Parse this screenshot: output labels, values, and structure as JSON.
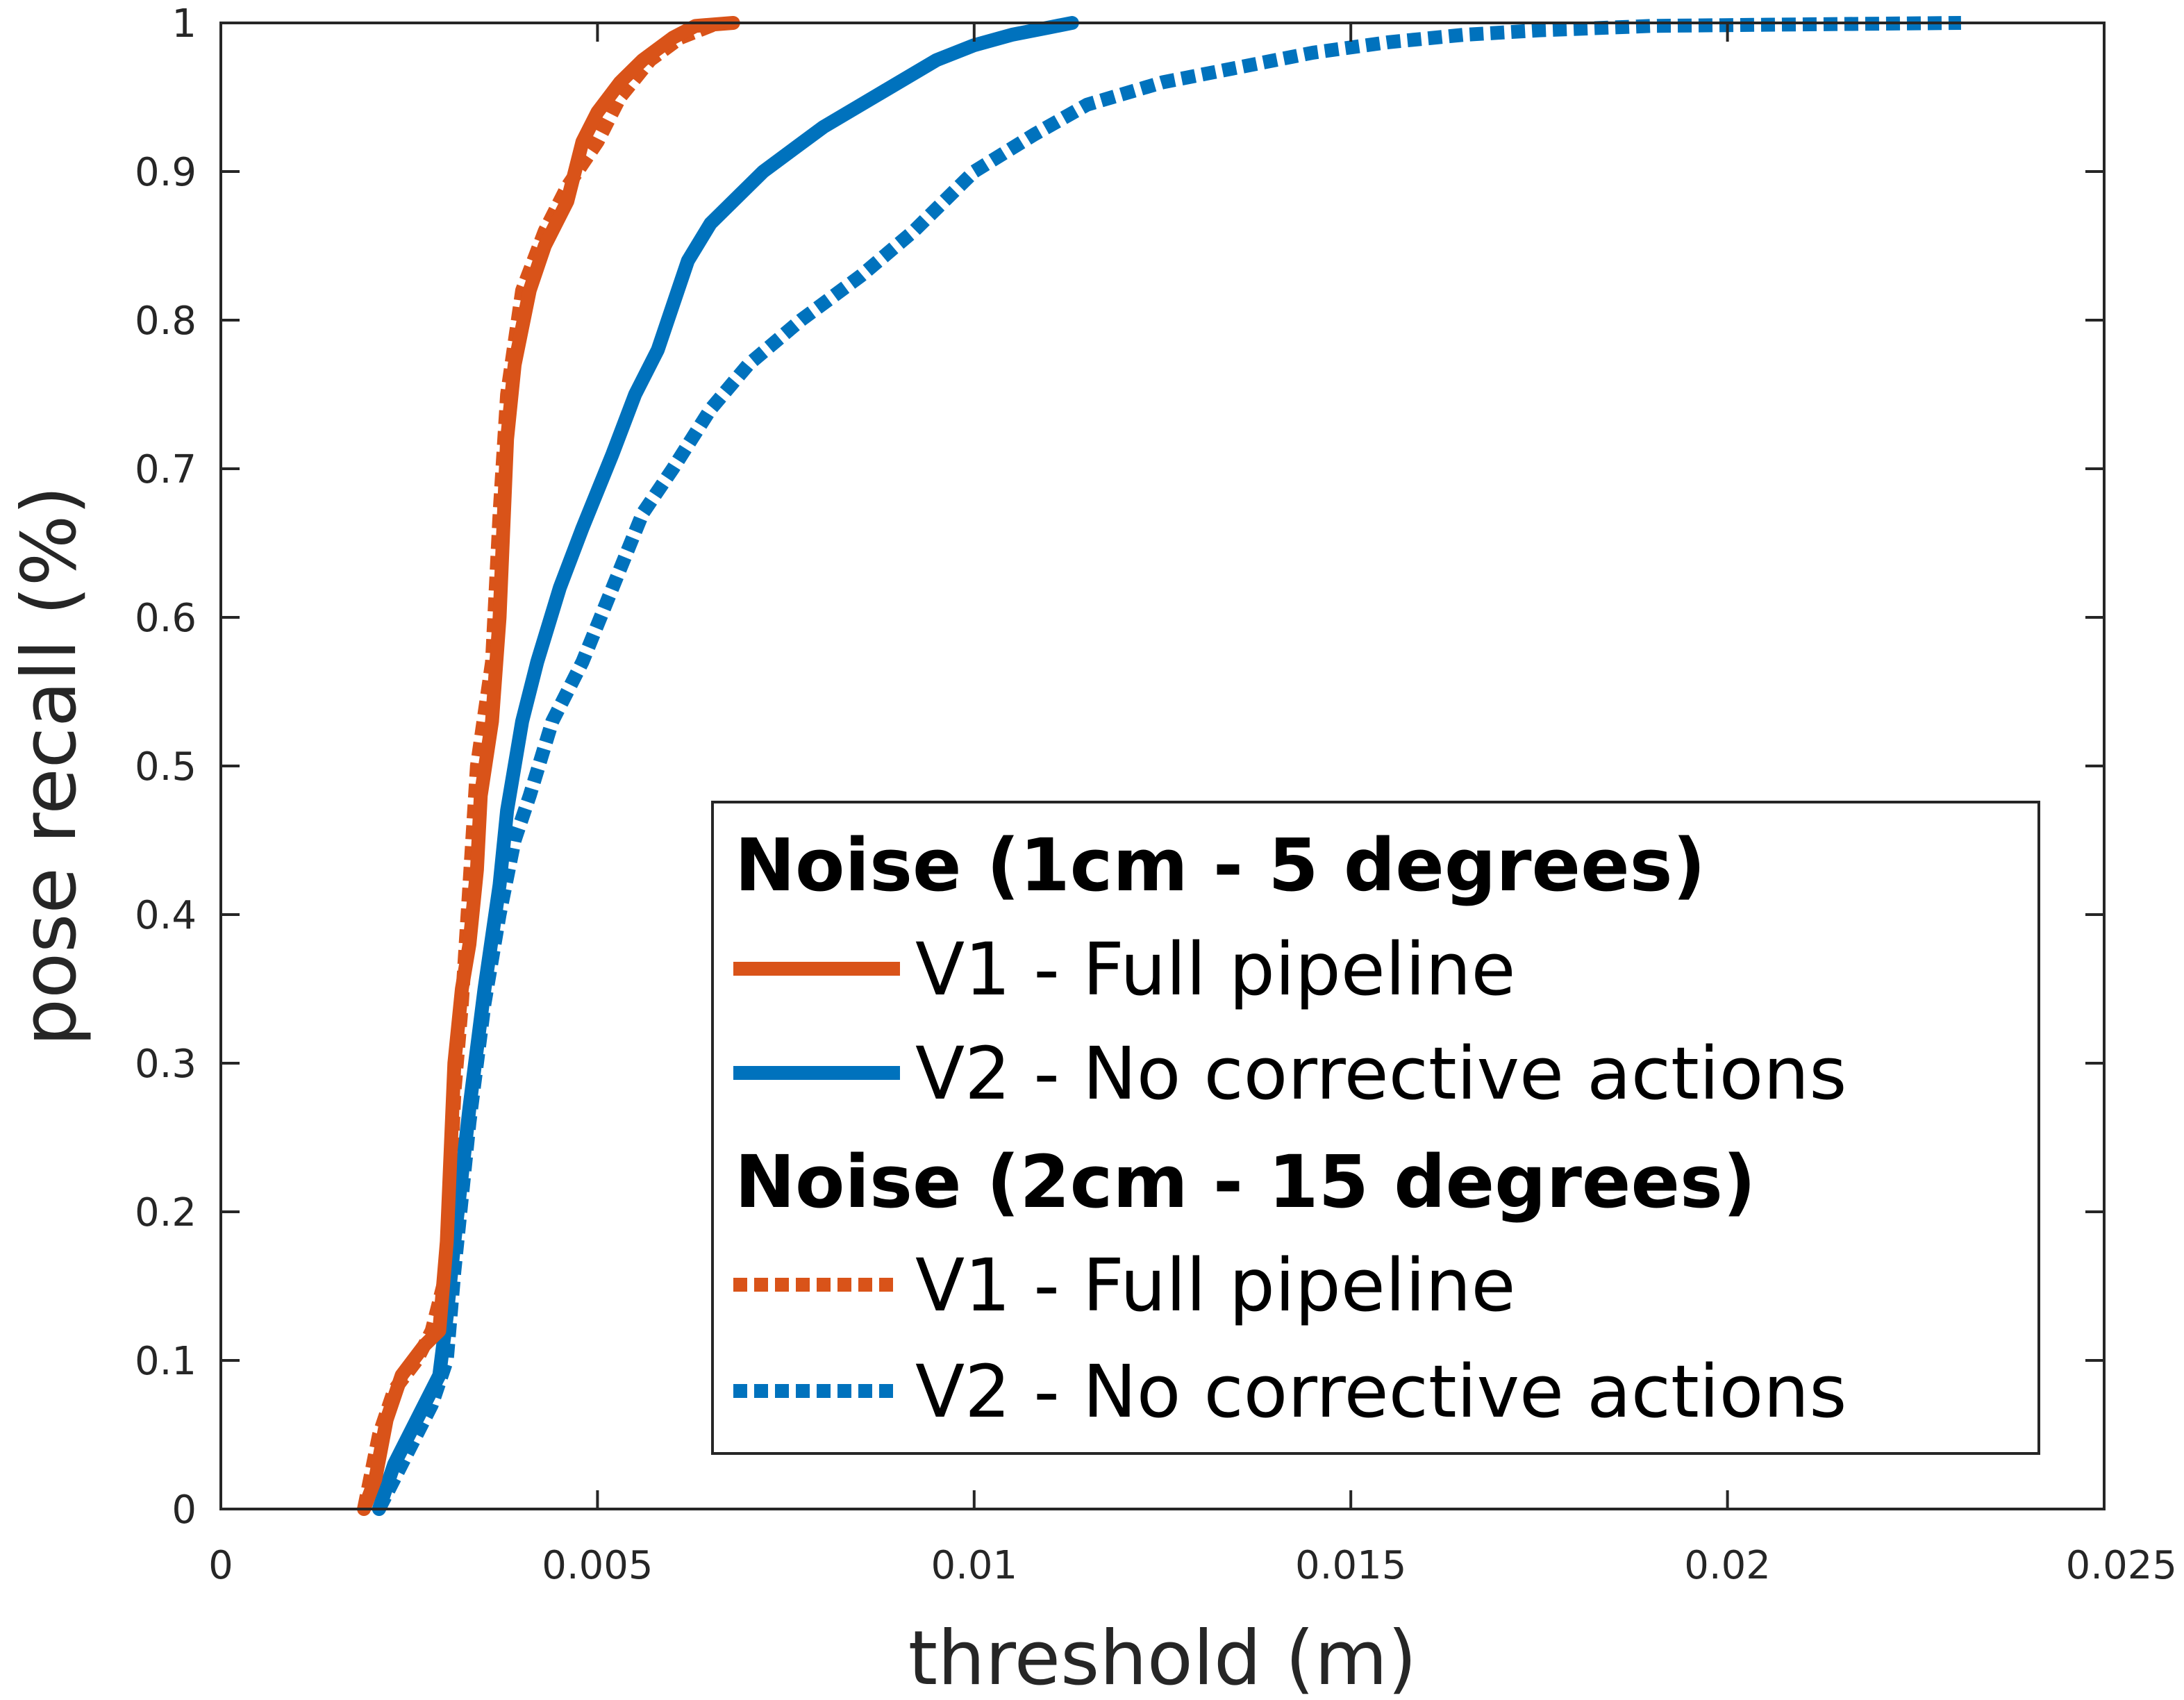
{
  "chart_data": {
    "type": "line",
    "xlabel": "threshold (m)",
    "ylabel": "pose recall (%)",
    "xlim": [
      0,
      0.025
    ],
    "ylim": [
      0,
      1
    ],
    "x_ticks": [
      {
        "value": 0,
        "label": "0"
      },
      {
        "value": 0.005,
        "label": "0.005"
      },
      {
        "value": 0.01,
        "label": "0.01"
      },
      {
        "value": 0.015,
        "label": "0.015"
      },
      {
        "value": 0.02,
        "label": "0.02"
      },
      {
        "value": 0.025,
        "label": "0.025"
      }
    ],
    "y_ticks": [
      {
        "value": 0,
        "label": "0"
      },
      {
        "value": 0.1,
        "label": "0.1"
      },
      {
        "value": 0.2,
        "label": "0.2"
      },
      {
        "value": 0.3,
        "label": "0.3"
      },
      {
        "value": 0.4,
        "label": "0.4"
      },
      {
        "value": 0.5,
        "label": "0.5"
      },
      {
        "value": 0.6,
        "label": "0.6"
      },
      {
        "value": 0.7,
        "label": "0.7"
      },
      {
        "value": 0.8,
        "label": "0.8"
      },
      {
        "value": 0.9,
        "label": "0.9"
      },
      {
        "value": 1,
        "label": "1"
      }
    ],
    "grid": false,
    "legend_position": "bottom-right",
    "legend_groups": [
      {
        "heading": "Noise (1cm - 5 degrees)",
        "series": [
          0,
          1
        ]
      },
      {
        "heading": "Noise (2cm - 15 degrees)",
        "series": [
          2,
          3
        ]
      }
    ],
    "series": [
      {
        "name": "V1 - Full pipeline",
        "color": "#D95319",
        "dash": "solid",
        "points": [
          [
            0.0019,
            0.0
          ],
          [
            0.00205,
            0.02
          ],
          [
            0.0022,
            0.06
          ],
          [
            0.0024,
            0.09
          ],
          [
            0.0027,
            0.11
          ],
          [
            0.0029,
            0.12
          ],
          [
            0.003,
            0.18
          ],
          [
            0.0031,
            0.3
          ],
          [
            0.0032,
            0.35
          ],
          [
            0.0033,
            0.38
          ],
          [
            0.0034,
            0.43
          ],
          [
            0.00345,
            0.48
          ],
          [
            0.0036,
            0.53
          ],
          [
            0.0037,
            0.6
          ],
          [
            0.0038,
            0.72
          ],
          [
            0.0039,
            0.77
          ],
          [
            0.0041,
            0.82
          ],
          [
            0.0043,
            0.85
          ],
          [
            0.0046,
            0.88
          ],
          [
            0.0048,
            0.92
          ],
          [
            0.005,
            0.94
          ],
          [
            0.0053,
            0.96
          ],
          [
            0.0056,
            0.975
          ],
          [
            0.006,
            0.99
          ],
          [
            0.0063,
            0.998
          ],
          [
            0.0068,
            1.0
          ]
        ]
      },
      {
        "name": "V2 - No corrective actions",
        "color": "#0072BD",
        "dash": "solid",
        "points": [
          [
            0.0021,
            0.0
          ],
          [
            0.0023,
            0.03
          ],
          [
            0.0026,
            0.06
          ],
          [
            0.0029,
            0.09
          ],
          [
            0.003,
            0.13
          ],
          [
            0.0031,
            0.18
          ],
          [
            0.0033,
            0.27
          ],
          [
            0.0035,
            0.35
          ],
          [
            0.0037,
            0.42
          ],
          [
            0.0038,
            0.47
          ],
          [
            0.004,
            0.53
          ],
          [
            0.0042,
            0.57
          ],
          [
            0.0045,
            0.62
          ],
          [
            0.0048,
            0.66
          ],
          [
            0.0052,
            0.71
          ],
          [
            0.0055,
            0.75
          ],
          [
            0.0058,
            0.78
          ],
          [
            0.006,
            0.81
          ],
          [
            0.0062,
            0.84
          ],
          [
            0.0065,
            0.865
          ],
          [
            0.0068,
            0.88
          ],
          [
            0.0072,
            0.9
          ],
          [
            0.0076,
            0.915
          ],
          [
            0.008,
            0.93
          ],
          [
            0.0085,
            0.945
          ],
          [
            0.009,
            0.96
          ],
          [
            0.0095,
            0.975
          ],
          [
            0.01,
            0.985
          ],
          [
            0.0105,
            0.992
          ],
          [
            0.011,
            0.997
          ],
          [
            0.0113,
            1.0
          ]
        ]
      },
      {
        "name": "V1 - Full pipeline",
        "color": "#D95319",
        "dash": "dotted",
        "points": [
          [
            0.0019,
            0.0
          ],
          [
            0.0021,
            0.05
          ],
          [
            0.0023,
            0.08
          ],
          [
            0.0026,
            0.1
          ],
          [
            0.0028,
            0.12
          ],
          [
            0.003,
            0.16
          ],
          [
            0.0031,
            0.28
          ],
          [
            0.0032,
            0.34
          ],
          [
            0.0033,
            0.42
          ],
          [
            0.0034,
            0.5
          ],
          [
            0.0036,
            0.57
          ],
          [
            0.0037,
            0.67
          ],
          [
            0.0038,
            0.75
          ],
          [
            0.004,
            0.82
          ],
          [
            0.0043,
            0.86
          ],
          [
            0.0046,
            0.89
          ],
          [
            0.005,
            0.92
          ],
          [
            0.0053,
            0.95
          ],
          [
            0.0057,
            0.975
          ],
          [
            0.0061,
            0.99
          ],
          [
            0.0066,
            1.0
          ]
        ]
      },
      {
        "name": "V2 - No corrective actions",
        "color": "#0072BD",
        "dash": "dotted",
        "points": [
          [
            0.0021,
            0.0
          ],
          [
            0.0023,
            0.02
          ],
          [
            0.0026,
            0.05
          ],
          [
            0.0028,
            0.07
          ],
          [
            0.003,
            0.1
          ],
          [
            0.0031,
            0.16
          ],
          [
            0.0033,
            0.26
          ],
          [
            0.0035,
            0.34
          ],
          [
            0.0037,
            0.4
          ],
          [
            0.0039,
            0.45
          ],
          [
            0.0041,
            0.48
          ],
          [
            0.0044,
            0.53
          ],
          [
            0.0048,
            0.57
          ],
          [
            0.0052,
            0.62
          ],
          [
            0.0056,
            0.67
          ],
          [
            0.006,
            0.7
          ],
          [
            0.0065,
            0.74
          ],
          [
            0.007,
            0.77
          ],
          [
            0.0077,
            0.8
          ],
          [
            0.0085,
            0.83
          ],
          [
            0.0092,
            0.86
          ],
          [
            0.01,
            0.9
          ],
          [
            0.0108,
            0.925
          ],
          [
            0.0115,
            0.945
          ],
          [
            0.0125,
            0.96
          ],
          [
            0.0135,
            0.97
          ],
          [
            0.0145,
            0.98
          ],
          [
            0.0155,
            0.987
          ],
          [
            0.0165,
            0.992
          ],
          [
            0.0175,
            0.995
          ],
          [
            0.019,
            0.998
          ],
          [
            0.021,
            0.999
          ],
          [
            0.0231,
            1.0
          ]
        ]
      }
    ]
  }
}
